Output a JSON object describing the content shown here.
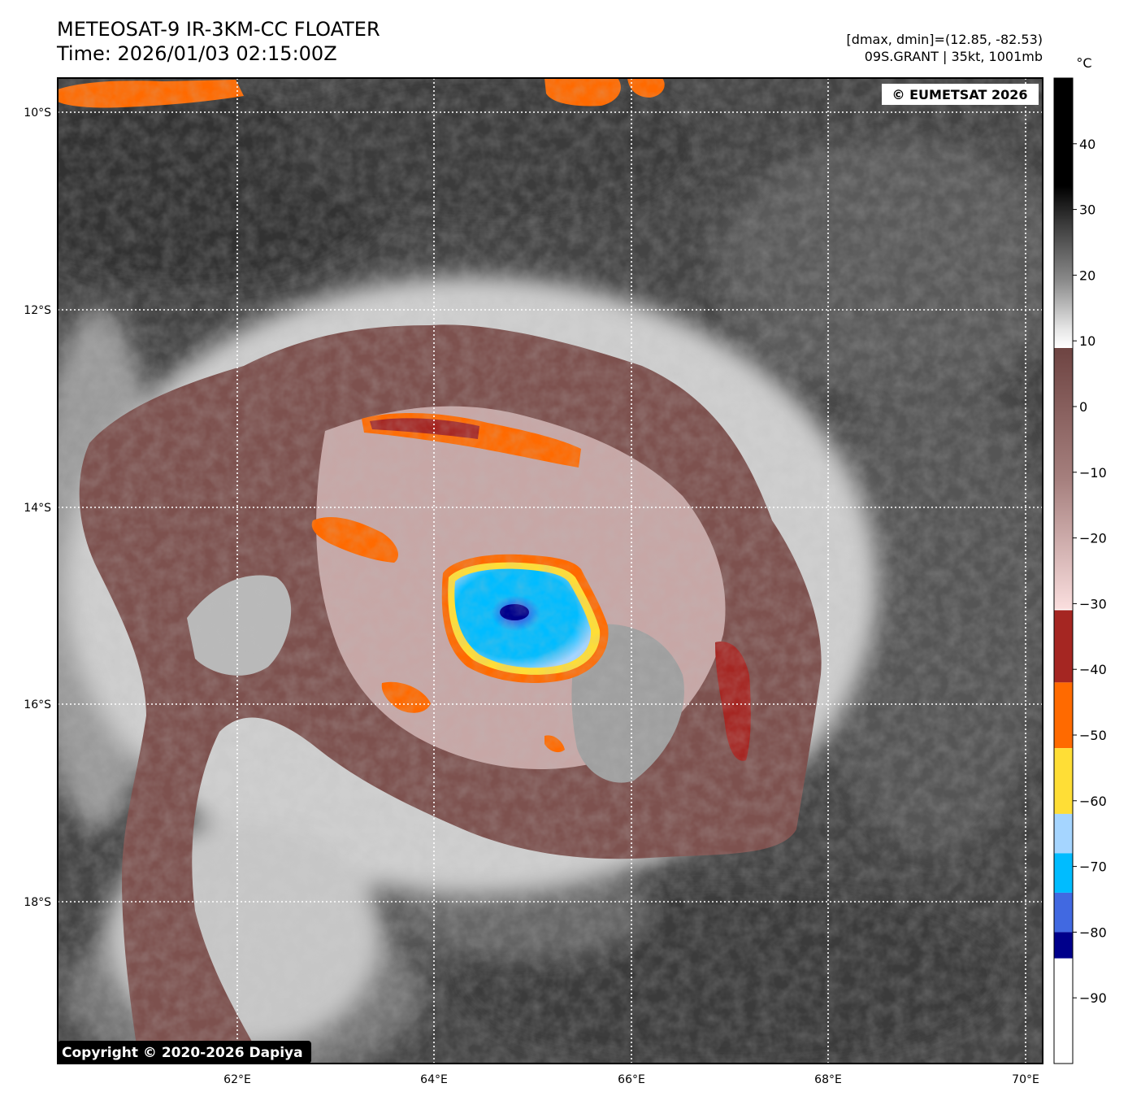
{
  "title": {
    "line1": "METEOSAT-9 IR-3KM-CC FLOATER",
    "line2": "Time: 2026/01/03 02:15:00Z"
  },
  "info": {
    "line1": "[dmax, dmin]=(12.85, -82.53)",
    "line2": "09S.GRANT | 35kt, 1001mb"
  },
  "watermarks": {
    "top_right": "© EUMETSAT 2026",
    "bottom_left": "Copyright © 2020-2026 Dapiya"
  },
  "axes": {
    "lat_labels": [
      "10°S",
      "12°S",
      "14°S",
      "16°S",
      "18°S"
    ],
    "lon_labels": [
      "62°E",
      "64°E",
      "66°E",
      "68°E",
      "70°E"
    ]
  },
  "colorbar": {
    "unit": "°C",
    "tick_labels": [
      "40",
      "30",
      "20",
      "10",
      "0",
      "−10",
      "−20",
      "−30",
      "−40",
      "−50",
      "−60",
      "−70",
      "−80",
      "−90"
    ],
    "bands": [
      {
        "from": 50,
        "to": 36,
        "color": "#000000"
      },
      {
        "from": 36,
        "to": 10,
        "color": "#808080"
      },
      {
        "from": 9,
        "to": -31,
        "color": "#7a4a48"
      },
      {
        "from": -31,
        "to": -42,
        "color": "#a52622"
      },
      {
        "from": -42,
        "to": -52,
        "color": "#ff6a00"
      },
      {
        "from": -52,
        "to": -62,
        "color": "#ffde36"
      },
      {
        "from": -62,
        "to": -68,
        "color": "#a5d5ff"
      },
      {
        "from": -68,
        "to": -74,
        "color": "#00bcff"
      },
      {
        "from": -74,
        "to": -80,
        "color": "#4169e1"
      },
      {
        "from": -80,
        "to": -84,
        "color": "#00008b"
      },
      {
        "from": -84,
        "to": -100,
        "color": "#ffffff"
      }
    ]
  },
  "colors": {
    "ocean_dark": "#3a3a3a",
    "cloud_mid": "#7a7a7a",
    "cloud_bright": "#d8d8d8",
    "cirrus_brown": "#7d514e",
    "cirrus_pink": "#e8cfcf",
    "convection_red": "#a52622",
    "convection_orange": "#ff6a00",
    "convection_yellow": "#ffde36",
    "core_lightblue": "#a5d5ff",
    "core_cyan": "#00bcff",
    "core_blue": "#4169e1",
    "core_navy": "#00008b"
  }
}
